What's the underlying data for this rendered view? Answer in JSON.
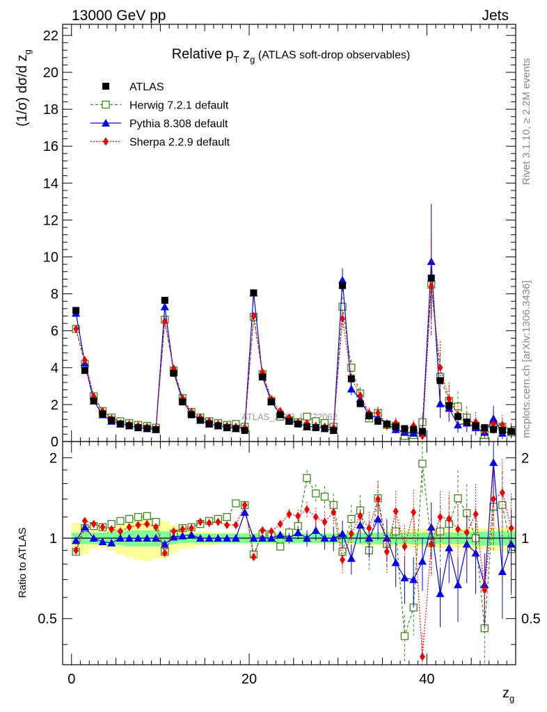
{
  "header": {
    "left": "13000 GeV pp",
    "right": "Jets"
  },
  "side_labels": {
    "rivet": "Rivet 3.1.10, ≥ 2.2M events",
    "mcplots": "mcplots.cern.ch [arXiv:1306.3436]"
  },
  "watermark": "ATLAS_2019_I1772062",
  "colors": {
    "atlas": "#000000",
    "herwig": "#3a8a1a",
    "pythia": "#0000ee",
    "sherpa": "#ee0000",
    "band_outer": "#ffff99",
    "band_inner": "#80ff99"
  },
  "chart_data": [
    {
      "type": "scatter",
      "title_parts": {
        "main": "Relative p",
        "sub": "T",
        "mid": " z",
        "sub2": "g",
        "tail": " (ATLAS soft-drop observables)"
      },
      "ylabel": "(1/σ) dσ/d z_g",
      "xlim": [
        -1,
        50
      ],
      "ylim": [
        0,
        22.6
      ],
      "yticks": [
        0,
        2,
        4,
        6,
        8,
        10,
        12,
        14,
        16,
        18,
        20,
        22
      ],
      "x": [
        0.5,
        1.5,
        2.5,
        3.5,
        4.5,
        5.5,
        6.5,
        7.5,
        8.5,
        9.5,
        10.5,
        11.5,
        12.5,
        13.5,
        14.5,
        15.5,
        16.5,
        17.5,
        18.5,
        19.5,
        20.5,
        21.5,
        22.5,
        23.5,
        24.5,
        25.5,
        26.5,
        27.5,
        28.5,
        29.5,
        30.5,
        31.5,
        32.5,
        33.5,
        34.5,
        35.5,
        36.5,
        37.5,
        38.5,
        39.5,
        40.5,
        41.5,
        42.5,
        43.5,
        44.5,
        45.5,
        46.5,
        47.5,
        48.5,
        49.5
      ],
      "series": [
        {
          "name": "ATLAS",
          "marker": "square",
          "values": [
            7.1,
            3.85,
            2.2,
            1.5,
            1.15,
            0.95,
            0.85,
            0.75,
            0.7,
            0.65,
            7.65,
            3.7,
            2.15,
            1.45,
            1.15,
            0.95,
            0.85,
            0.75,
            0.7,
            0.6,
            8.05,
            3.5,
            2.15,
            1.45,
            1.1,
            0.95,
            0.8,
            0.75,
            0.7,
            0.6,
            8.45,
            3.4,
            2.05,
            1.4,
            1.1,
            0.95,
            0.8,
            0.7,
            0.65,
            0.55,
            8.85,
            3.3,
            1.95,
            1.35,
            1.05,
            0.85,
            0.75,
            0.65,
            0.6,
            0.55
          ]
        },
        {
          "name": "Herwig 7.2.1 default",
          "marker": "open-square",
          "values": [
            6.1,
            4.2,
            2.45,
            1.65,
            1.3,
            1.1,
            1.0,
            0.9,
            0.85,
            0.75,
            6.6,
            3.85,
            2.35,
            1.6,
            1.3,
            1.1,
            1.0,
            0.9,
            0.95,
            0.8,
            6.75,
            3.65,
            2.2,
            1.35,
            1.15,
            1.05,
            1.35,
            1.1,
            1.0,
            0.8,
            7.3,
            4.0,
            2.6,
            1.25,
            1.55,
            0.9,
            0.85,
            0.3,
            0.35,
            1.05,
            8.5,
            3.5,
            2.2,
            1.9,
            1.3,
            0.85,
            0.35,
            0.85,
            0.8,
            0.5
          ],
          "ratio": [
            0.89,
            1.09,
            1.11,
            1.1,
            1.13,
            1.16,
            1.18,
            1.2,
            1.21,
            1.15,
            0.89,
            1.04,
            1.09,
            1.1,
            1.13,
            1.16,
            1.18,
            1.2,
            1.35,
            1.33,
            0.87,
            1.04,
            1.02,
            0.93,
            1.05,
            1.11,
            1.68,
            1.47,
            1.43,
            1.33,
            0.89,
            1.18,
            1.27,
            0.9,
            1.41,
            0.95,
            1.06,
            0.43,
            0.55,
            1.9,
            0.96,
            1.06,
            1.13,
            1.41,
            1.24,
            1.0,
            0.46,
            1.31,
            1.33,
            0.91
          ]
        },
        {
          "name": "Pythia 8.308 default",
          "marker": "triangle",
          "values": [
            6.95,
            4.25,
            2.2,
            1.45,
            1.1,
            0.95,
            0.85,
            0.75,
            0.7,
            0.65,
            7.3,
            3.75,
            2.2,
            1.5,
            1.15,
            0.95,
            0.85,
            0.75,
            0.7,
            0.75,
            8.05,
            3.5,
            2.15,
            1.5,
            1.1,
            1.0,
            0.8,
            0.8,
            0.7,
            0.6,
            8.75,
            2.85,
            2.3,
            1.4,
            1.3,
            0.95,
            0.65,
            0.5,
            0.45,
            0.45,
            9.75,
            2.05,
            1.8,
            0.9,
            1.0,
            0.75,
            0.5,
            1.25,
            0.45,
            0.55
          ],
          "ratio": [
            0.98,
            1.1,
            1.0,
            0.97,
            0.96,
            1.0,
            1.0,
            1.0,
            1.0,
            1.0,
            0.95,
            1.01,
            1.02,
            1.03,
            1.0,
            1.0,
            1.0,
            1.0,
            1.0,
            1.25,
            1.0,
            1.0,
            1.0,
            1.03,
            1.0,
            1.05,
            1.0,
            1.07,
            1.0,
            1.0,
            1.04,
            0.84,
            1.12,
            1.0,
            1.18,
            1.0,
            0.81,
            0.71,
            0.7,
            0.82,
            1.1,
            0.62,
            0.92,
            0.67,
            0.95,
            0.88,
            0.67,
            1.92,
            0.75,
            0.95
          ]
        },
        {
          "name": "Sherpa 2.2.9 default",
          "marker": "diamond",
          "values": [
            6.1,
            4.4,
            2.45,
            1.65,
            1.25,
            1.0,
            0.95,
            0.85,
            0.8,
            0.7,
            6.5,
            3.95,
            2.35,
            1.6,
            1.3,
            1.1,
            0.95,
            0.85,
            0.8,
            0.75,
            6.8,
            3.75,
            2.3,
            1.65,
            1.3,
            1.05,
            1.0,
            0.85,
            0.8,
            0.75,
            6.65,
            3.45,
            2.5,
            1.55,
            1.55,
            0.85,
            1.0,
            0.65,
            0.85,
            0.3,
            8.4,
            4.0,
            2.3,
            1.45,
            1.1,
            1.05,
            0.6,
            0.95,
            0.9,
            0.6
          ],
          "ratio": [
            0.9,
            1.16,
            1.13,
            1.1,
            1.08,
            1.06,
            1.1,
            1.12,
            1.13,
            1.1,
            0.88,
            1.06,
            1.08,
            1.09,
            1.15,
            1.14,
            1.15,
            1.12,
            1.12,
            1.33,
            0.85,
            1.07,
            1.06,
            1.13,
            1.23,
            1.21,
            1.28,
            1.2,
            1.15,
            1.25,
            0.83,
            1.04,
            1.21,
            1.09,
            1.4,
            0.89,
            1.26,
            0.93,
            1.25,
            0.36,
            0.95,
            1.2,
            1.18,
            1.08,
            1.05,
            1.23,
            0.64,
            1.4,
            1.48,
            1.09
          ]
        }
      ]
    },
    {
      "type": "scatter",
      "ylabel": "Ratio to ATLAS",
      "xlabel": "z_g",
      "xlim": [
        -1,
        50
      ],
      "ylim": [
        0.3361,
        2.2996
      ],
      "log_y": true,
      "yticks": [
        0.5,
        1,
        2
      ],
      "xticks": [
        0,
        20,
        40
      ],
      "uncertainty_band": {
        "outer": [
          0.14,
          0.13,
          0.09,
          0.08,
          0.1,
          0.13,
          0.15,
          0.17,
          0.18,
          0.16,
          0.16,
          0.12,
          0.09,
          0.08,
          0.06,
          0.06,
          0.05,
          0.05,
          0.05,
          0.05,
          0.05,
          0.05,
          0.05,
          0.05,
          0.05,
          0.05,
          0.05,
          0.05,
          0.05,
          0.05,
          0.05,
          0.05,
          0.06,
          0.06,
          0.06,
          0.07,
          0.07,
          0.07,
          0.08,
          0.08,
          0.08,
          0.08,
          0.08,
          0.08,
          0.09,
          0.09,
          0.09,
          0.1,
          0.1,
          0.1
        ],
        "inner": [
          0.05,
          0.05,
          0.05,
          0.05,
          0.06,
          0.06,
          0.07,
          0.07,
          0.07,
          0.07,
          0.06,
          0.05,
          0.04,
          0.04,
          0.04,
          0.04,
          0.04,
          0.04,
          0.04,
          0.04,
          0.04,
          0.04,
          0.04,
          0.04,
          0.04,
          0.04,
          0.04,
          0.04,
          0.04,
          0.04,
          0.04,
          0.04,
          0.05,
          0.05,
          0.05,
          0.05,
          0.05,
          0.05,
          0.05,
          0.05,
          0.05,
          0.05,
          0.05,
          0.05,
          0.05,
          0.06,
          0.06,
          0.06,
          0.06,
          0.06
        ]
      }
    }
  ]
}
